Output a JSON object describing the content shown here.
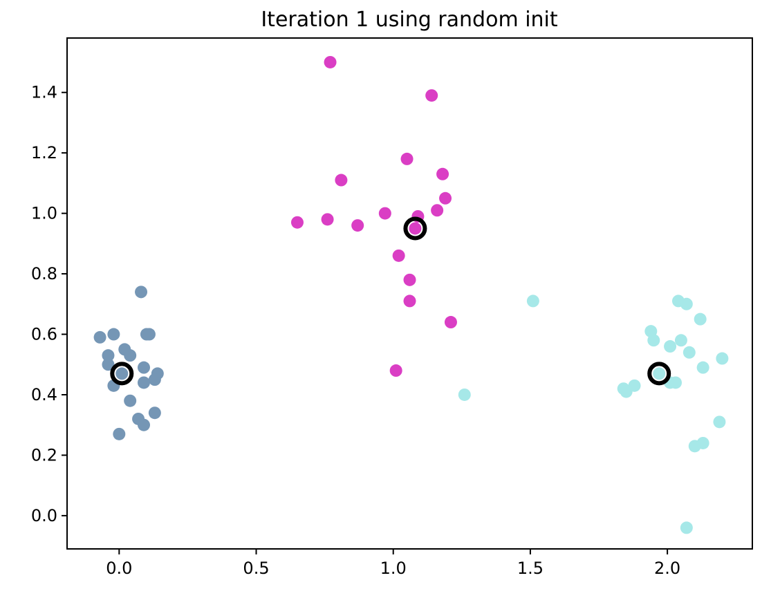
{
  "chart_data": {
    "type": "scatter",
    "title": "Iteration 1 using random init",
    "xlabel": "",
    "ylabel": "",
    "xlim": [
      -0.19,
      2.31
    ],
    "ylim": [
      -0.11,
      1.58
    ],
    "xticks": [
      0.0,
      0.5,
      1.0,
      1.5,
      2.0
    ],
    "xtick_labels": [
      "0.0",
      "0.5",
      "1.0",
      "1.5",
      "2.0"
    ],
    "yticks": [
      0.0,
      0.2,
      0.4,
      0.6,
      0.8,
      1.0,
      1.2,
      1.4
    ],
    "ytick_labels": [
      "0.0",
      "0.2",
      "0.4",
      "0.6",
      "0.8",
      "1.0",
      "1.2",
      "1.4"
    ],
    "grid": false,
    "legend": "none",
    "series": [
      {
        "color": "#7596b5",
        "x": [
          0.08,
          -0.02,
          -0.07,
          0.1,
          0.11,
          0.02,
          -0.04,
          0.04,
          0.09,
          -0.04,
          0.14,
          0.13,
          0.09,
          -0.02,
          0.01,
          0.04,
          0.13,
          0.07,
          0.09,
          0.0
        ],
        "y": [
          0.74,
          0.6,
          0.59,
          0.6,
          0.6,
          0.55,
          0.53,
          0.53,
          0.49,
          0.5,
          0.47,
          0.45,
          0.44,
          0.43,
          0.47,
          0.38,
          0.34,
          0.32,
          0.3,
          0.27
        ]
      },
      {
        "color": "#da3ec4",
        "x": [
          0.77,
          1.14,
          1.05,
          1.18,
          0.81,
          1.19,
          0.97,
          1.16,
          1.09,
          0.65,
          0.76,
          0.87,
          1.08,
          1.02,
          1.06,
          1.06,
          1.21,
          1.01
        ],
        "y": [
          1.5,
          1.39,
          1.18,
          1.13,
          1.11,
          1.05,
          1.0,
          1.01,
          0.99,
          0.97,
          0.98,
          0.96,
          0.95,
          0.86,
          0.78,
          0.71,
          0.64,
          0.48
        ]
      },
      {
        "color": "#a6e8e8",
        "x": [
          1.51,
          2.04,
          2.07,
          2.12,
          1.94,
          1.95,
          2.05,
          2.01,
          2.08,
          2.2,
          2.13,
          1.97,
          2.01,
          2.03,
          1.84,
          1.85,
          1.88,
          1.26,
          2.19,
          2.13,
          2.1,
          2.07
        ],
        "y": [
          0.71,
          0.71,
          0.7,
          0.65,
          0.61,
          0.58,
          0.58,
          0.56,
          0.54,
          0.52,
          0.49,
          0.47,
          0.44,
          0.44,
          0.42,
          0.41,
          0.43,
          0.4,
          0.31,
          0.24,
          0.23,
          -0.04
        ]
      }
    ],
    "centroids": {
      "color": "#000000",
      "marker": "hollow-circle",
      "x": [
        0.01,
        1.08,
        1.97
      ],
      "y": [
        0.47,
        0.95,
        0.47
      ]
    }
  }
}
